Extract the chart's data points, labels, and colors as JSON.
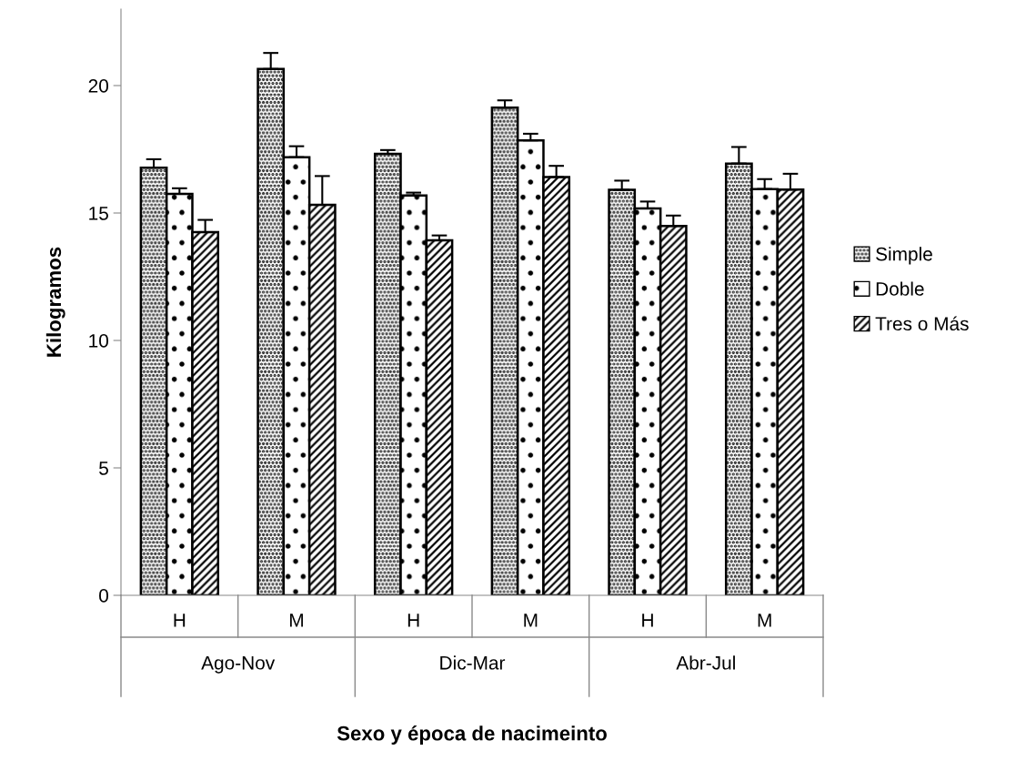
{
  "chart_data": {
    "type": "bar",
    "xlabel": "Sexo y época de nacimeinto",
    "ylabel": "Kilogramos",
    "categories": [
      "H",
      "M",
      "H",
      "M",
      "H",
      "M"
    ],
    "annotations": [
      "Ago-Nov",
      "Dic-Mar",
      "Abr-Jul"
    ],
    "series": [
      {
        "name": "Simple",
        "color": "#000000",
        "values": [
          16.78,
          20.65,
          17.32,
          19.13,
          15.91,
          16.94
        ],
        "errors": [
          [
            16.78,
            17.11
          ],
          [
            20.65,
            21.28
          ],
          [
            17.32,
            17.47
          ],
          [
            19.13,
            19.42
          ],
          [
            15.91,
            16.27
          ],
          [
            16.94,
            17.59
          ]
        ]
      },
      {
        "name": "Doble",
        "color": "#000000",
        "values": [
          15.75,
          17.19,
          15.69,
          17.85,
          15.18,
          15.94
        ],
        "errors": [
          [
            15.75,
            15.97
          ],
          [
            17.19,
            17.62
          ],
          [
            15.69,
            15.8
          ],
          [
            17.85,
            18.11
          ],
          [
            15.18,
            15.45
          ],
          [
            15.94,
            16.33
          ]
        ]
      },
      {
        "name": "Tres o Más",
        "color": "#000000",
        "values": [
          14.25,
          15.32,
          13.93,
          16.41,
          14.49,
          15.92
        ],
        "errors": [
          [
            14.25,
            14.73
          ],
          [
            15.32,
            16.45
          ],
          [
            13.93,
            14.12
          ],
          [
            16.41,
            16.85
          ],
          [
            14.49,
            14.9
          ],
          [
            15.92,
            16.54
          ]
        ]
      }
    ],
    "ylim": [
      0,
      23
    ],
    "yticks": [
      0,
      5,
      10,
      15,
      20
    ],
    "grid": false,
    "legend": "right"
  }
}
